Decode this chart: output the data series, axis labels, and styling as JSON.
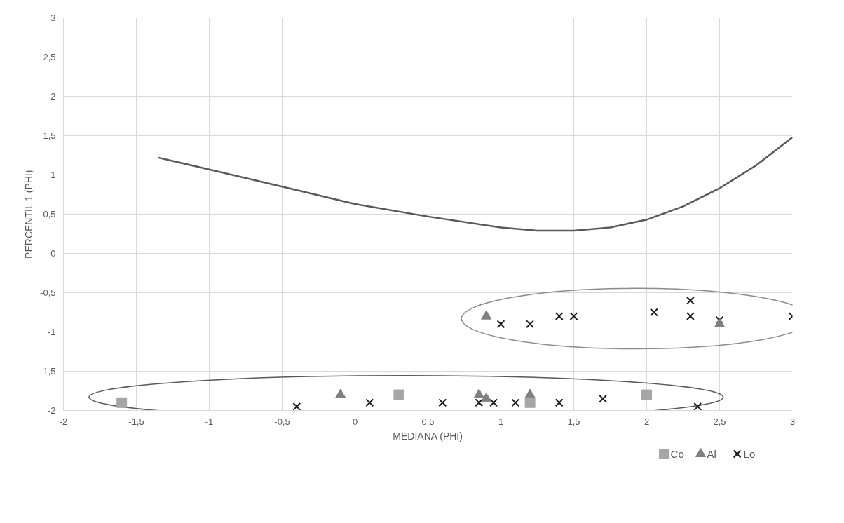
{
  "chart_data": {
    "type": "scatter",
    "xlabel": "MEDIANA (PHI)",
    "ylabel": "PERCENTIL 1 (PHI)",
    "xlim": [
      -2,
      3
    ],
    "ylim": [
      -2,
      3
    ],
    "xticks": [
      {
        "value": -2,
        "label": "-2"
      },
      {
        "value": -1.5,
        "label": "-1,5"
      },
      {
        "value": -1,
        "label": "-1"
      },
      {
        "value": -0.5,
        "label": "-0,5"
      },
      0,
      {
        "value": 0.5,
        "label": "0,5"
      },
      1,
      {
        "value": 1.5,
        "label": "1,5"
      },
      2,
      {
        "value": 2.5,
        "label": "2,5"
      },
      3
    ],
    "yticks": [
      {
        "value": -2,
        "label": "-2"
      },
      {
        "value": -1.5,
        "label": "-1,5"
      },
      {
        "value": -1,
        "label": "-1"
      },
      {
        "value": -0.5,
        "label": "-0,5"
      },
      0,
      {
        "value": 0.5,
        "label": "0,5"
      },
      1,
      {
        "value": 1.5,
        "label": "1,5"
      },
      2,
      {
        "value": 2.5,
        "label": "2,5"
      },
      3
    ],
    "grid": true,
    "legend": "bottom right",
    "series": [
      {
        "name": "Co",
        "color": "#a6a6a6",
        "marker": "square",
        "x": [
          -1.6,
          0.3,
          1.2,
          2.0
        ],
        "values": [
          -1.9,
          -1.8,
          -1.9,
          -1.8
        ]
      },
      {
        "name": "Al",
        "color": "#808080",
        "marker": "triangle",
        "x": [
          -0.1,
          0.85,
          0.9,
          1.2,
          0.9,
          2.5
        ],
        "values": [
          -1.8,
          -1.8,
          -1.85,
          -1.8,
          -0.8,
          -0.9
        ]
      },
      {
        "name": "Lo",
        "color": "#1a1a1a",
        "marker": "cross",
        "x": [
          -0.4,
          0.1,
          0.6,
          0.85,
          0.95,
          1.1,
          1.4,
          1.7,
          2.35,
          1.0,
          1.2,
          1.4,
          1.5,
          2.05,
          2.3,
          2.3,
          2.5,
          3.0
        ],
        "values": [
          -1.95,
          -1.9,
          -1.9,
          -1.9,
          -1.9,
          -1.9,
          -1.9,
          -1.85,
          -1.95,
          -0.9,
          -0.9,
          -0.8,
          -0.8,
          -0.75,
          -0.6,
          -0.8,
          -0.85,
          -0.8
        ]
      },
      {
        "type": "line",
        "color": "#595959",
        "marker": "none",
        "x": [
          -1.35,
          -1,
          -0.5,
          0,
          0.5,
          1,
          1.25,
          1.5,
          1.75,
          2,
          2.25,
          2.5,
          2.75,
          3
        ],
        "values": [
          1.22,
          1.07,
          0.85,
          0.63,
          0.47,
          0.33,
          0.29,
          0.29,
          0.33,
          0.43,
          0.6,
          0.83,
          1.12,
          1.48
        ]
      }
    ]
  }
}
